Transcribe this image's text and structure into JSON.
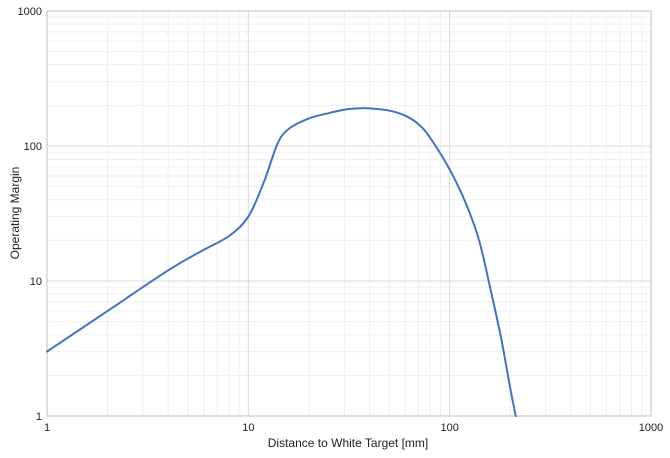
{
  "chart_data": {
    "type": "line",
    "x_scale": "log",
    "y_scale": "log",
    "xlim": [
      1,
      1000
    ],
    "ylim": [
      1,
      1000
    ],
    "xlabel": "Distance to White Target [mm]",
    "ylabel": "Operating Margin",
    "x_ticks": [
      "1",
      "10",
      "100",
      "1000"
    ],
    "y_ticks": [
      "1",
      "10",
      "100",
      "1000"
    ],
    "grid": true,
    "legend": "none",
    "series": [
      {
        "color": "#4472c4",
        "points": [
          [
            1,
            3.0
          ],
          [
            2,
            6.0
          ],
          [
            4,
            12.0
          ],
          [
            6,
            17.0
          ],
          [
            8,
            21.5
          ],
          [
            10,
            30.0
          ],
          [
            12,
            55.0
          ],
          [
            14,
            105.0
          ],
          [
            16,
            135.0
          ],
          [
            20,
            160.0
          ],
          [
            25,
            175.0
          ],
          [
            30,
            186.0
          ],
          [
            35,
            190.0
          ],
          [
            40,
            190.0
          ],
          [
            50,
            183.0
          ],
          [
            60,
            168.0
          ],
          [
            70,
            145.0
          ],
          [
            80,
            115.0
          ],
          [
            100,
            67.0
          ],
          [
            120,
            38.0
          ],
          [
            140,
            20.0
          ],
          [
            160,
            8.5
          ],
          [
            180,
            3.8
          ],
          [
            200,
            1.6
          ],
          [
            213,
            1.0
          ]
        ]
      }
    ]
  },
  "colors": {
    "grid_major": "#d9d9d9",
    "grid_minor": "#efefef",
    "axis": "#bfbfbf"
  }
}
